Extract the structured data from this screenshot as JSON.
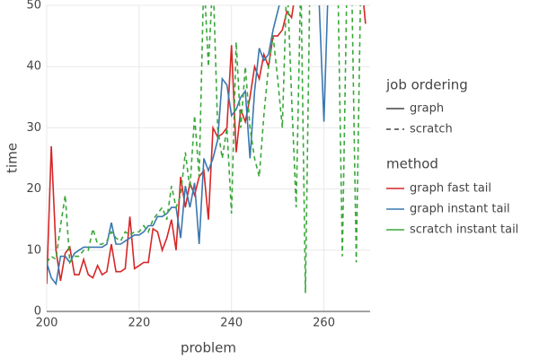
{
  "chart_data": {
    "type": "line",
    "x_label": "problem",
    "y_label": "time",
    "x": [
      200,
      201,
      202,
      203,
      204,
      205,
      206,
      207,
      208,
      209,
      210,
      211,
      212,
      213,
      214,
      215,
      216,
      217,
      218,
      219,
      220,
      221,
      222,
      223,
      224,
      225,
      226,
      227,
      228,
      229,
      230,
      231,
      232,
      233,
      234,
      235,
      236,
      237,
      238,
      239,
      240,
      241,
      242,
      243,
      244,
      245,
      246,
      247,
      248,
      249,
      250,
      251,
      252,
      253,
      254,
      255,
      256,
      257,
      258,
      259,
      260,
      261,
      262,
      263,
      264,
      265,
      266,
      267,
      268,
      269
    ],
    "xlim": [
      200,
      270
    ],
    "xticks": [
      200,
      220,
      240,
      260
    ],
    "ylim": [
      0,
      50
    ],
    "yticks": [
      0,
      10,
      20,
      30,
      40,
      50
    ],
    "grid": true,
    "legend_titles": [
      "job ordering",
      "method"
    ],
    "line_styles": [
      {
        "label": "graph",
        "dashed": false
      },
      {
        "label": "scratch",
        "dashed": true
      }
    ],
    "series": [
      {
        "name": "graph fast tail",
        "color": "#d62728",
        "dashed": false,
        "values": [
          4.5,
          27,
          10,
          5,
          9.5,
          10.5,
          6,
          6,
          8.5,
          6,
          5.5,
          7.5,
          6,
          6.5,
          11,
          6.5,
          6.5,
          7,
          15.5,
          7,
          7.5,
          8,
          8,
          13.5,
          13,
          10,
          12,
          15,
          10,
          22,
          17,
          21,
          19,
          22,
          23,
          15,
          30,
          28.5,
          29,
          30,
          43.5,
          26,
          33,
          31,
          35,
          40,
          38,
          42,
          40,
          45,
          45,
          46,
          49,
          48,
          53,
          55,
          55,
          55,
          55,
          55,
          55,
          55,
          55,
          55,
          55,
          55,
          55,
          55,
          55,
          47
        ]
      },
      {
        "name": "graph instant tail",
        "color": "#3a78b0",
        "dashed": false,
        "values": [
          8,
          5.5,
          4.5,
          9,
          9,
          8,
          9.5,
          10,
          10.5,
          10.5,
          10.5,
          10.5,
          10.5,
          11,
          14.5,
          11,
          11,
          11.5,
          12,
          12.5,
          12.5,
          13,
          14,
          14,
          15.5,
          15.5,
          16,
          17,
          17,
          12,
          20.5,
          17,
          21,
          11,
          25,
          23,
          25,
          28,
          38,
          37,
          32,
          33,
          35,
          36,
          25,
          36,
          43,
          41,
          42,
          46,
          49,
          52,
          55,
          55,
          55,
          55,
          55,
          55,
          55,
          50,
          31,
          55,
          55,
          null,
          null,
          null,
          null,
          null,
          null,
          null
        ]
      },
      {
        "name": "scratch instant tail",
        "color": "#3aa83a",
        "dashed": true,
        "values": [
          8,
          9,
          8.5,
          14,
          19,
          8,
          9,
          9,
          10,
          10,
          13.5,
          11,
          11,
          11.5,
          13,
          12,
          11.5,
          13,
          12.5,
          13,
          13,
          14,
          13,
          15,
          16,
          17,
          15,
          20.5,
          17,
          19,
          26,
          20,
          32,
          22,
          55,
          40,
          55,
          30,
          25,
          30,
          16,
          44,
          30,
          40,
          30,
          25,
          22,
          32,
          40,
          45,
          38,
          30,
          55,
          35,
          17,
          55,
          3,
          55,
          55,
          55,
          55,
          55,
          55,
          55,
          9,
          55,
          55,
          8,
          55,
          55
        ]
      }
    ]
  }
}
